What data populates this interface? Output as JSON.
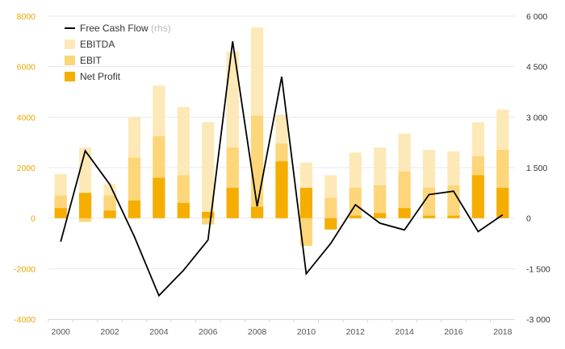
{
  "chart_data": {
    "type": "bar+line",
    "years": [
      2000,
      2001,
      2002,
      2003,
      2004,
      2005,
      2006,
      2007,
      2008,
      2009,
      2010,
      2011,
      2012,
      2013,
      2014,
      2015,
      2016,
      2017,
      2018
    ],
    "series": [
      {
        "name": "EBITDA",
        "axis": "left",
        "kind": "bar",
        "color": "#fde9b8",
        "values": [
          1750,
          2800,
          1350,
          4000,
          5250,
          4400,
          3800,
          6600,
          7550,
          4100,
          2200,
          1700,
          2600,
          2800,
          3350,
          2700,
          2650,
          3800,
          4300
        ]
      },
      {
        "name": "EBIT",
        "axis": "left",
        "kind": "bar",
        "color": "#fdd67a",
        "values": [
          900,
          -150,
          900,
          2400,
          3250,
          1700,
          -250,
          2800,
          4050,
          2950,
          -1100,
          800,
          1200,
          1300,
          1850,
          1200,
          1300,
          2450,
          2700
        ]
      },
      {
        "name": "Net Profit",
        "axis": "left",
        "kind": "bar",
        "color": "#f5ae00",
        "values": [
          400,
          1000,
          300,
          700,
          1600,
          600,
          250,
          1200,
          450,
          2250,
          1200,
          -450,
          100,
          200,
          400,
          100,
          100,
          1700,
          1200
        ]
      },
      {
        "name": "Free Cash Flow",
        "legend_suffix": "(rhs)",
        "axis": "right",
        "kind": "line",
        "color": "#000000",
        "values": [
          -700,
          2000,
          1000,
          -550,
          -2300,
          -1550,
          -650,
          5250,
          350,
          4200,
          -1650,
          -750,
          400,
          -150,
          -350,
          700,
          800,
          -400,
          100
        ]
      }
    ],
    "left_axis": {
      "range": [
        -4000,
        8000
      ],
      "ticks": [
        -4000,
        -2000,
        0,
        2000,
        4000,
        6000,
        8000
      ]
    },
    "right_axis": {
      "range": [
        -3000,
        6000
      ],
      "ticks": [
        -3000,
        -1500,
        0,
        1500,
        3000,
        4500,
        6000
      ]
    },
    "x_tick_labels": [
      2000,
      2002,
      2004,
      2006,
      2008,
      2010,
      2012,
      2014,
      2016,
      2018
    ],
    "grid": "horizontal",
    "legend_placement": "top-left"
  }
}
